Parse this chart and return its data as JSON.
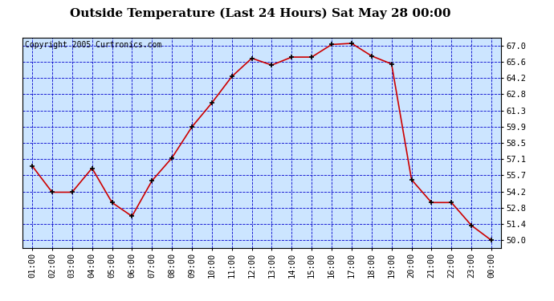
{
  "title": "Outside Temperature (Last 24 Hours) Sat May 28 00:00",
  "copyright_text": "Copyright 2005 Curtronics.com",
  "x_labels": [
    "01:00",
    "02:00",
    "03:00",
    "04:00",
    "05:00",
    "06:00",
    "07:00",
    "08:00",
    "09:00",
    "10:00",
    "11:00",
    "12:00",
    "13:00",
    "14:00",
    "15:00",
    "16:00",
    "17:00",
    "18:00",
    "19:00",
    "20:00",
    "21:00",
    "22:00",
    "23:00",
    "00:00"
  ],
  "x_values": [
    1,
    2,
    3,
    4,
    5,
    6,
    7,
    8,
    9,
    10,
    11,
    12,
    13,
    14,
    15,
    16,
    17,
    18,
    19,
    20,
    21,
    22,
    23,
    24
  ],
  "y_values": [
    56.5,
    54.2,
    54.2,
    56.3,
    53.3,
    52.1,
    55.2,
    57.2,
    59.9,
    62.0,
    64.3,
    65.9,
    65.3,
    66.0,
    66.0,
    67.1,
    67.2,
    66.1,
    65.4,
    55.3,
    53.3,
    53.3,
    51.3,
    50.0
  ],
  "y_tick_values": [
    50.0,
    51.4,
    52.8,
    54.2,
    55.7,
    57.1,
    58.5,
    59.9,
    61.3,
    62.8,
    64.2,
    65.6,
    67.0
  ],
  "ylim_min": 49.3,
  "ylim_max": 67.7,
  "line_color": "#cc0000",
  "marker_color": "#000000",
  "bg_color": "#cce5ff",
  "outer_bg_color": "#ffffff",
  "grid_color": "#0000cc",
  "title_fontsize": 11,
  "copyright_fontsize": 7,
  "tick_fontsize": 7.5
}
